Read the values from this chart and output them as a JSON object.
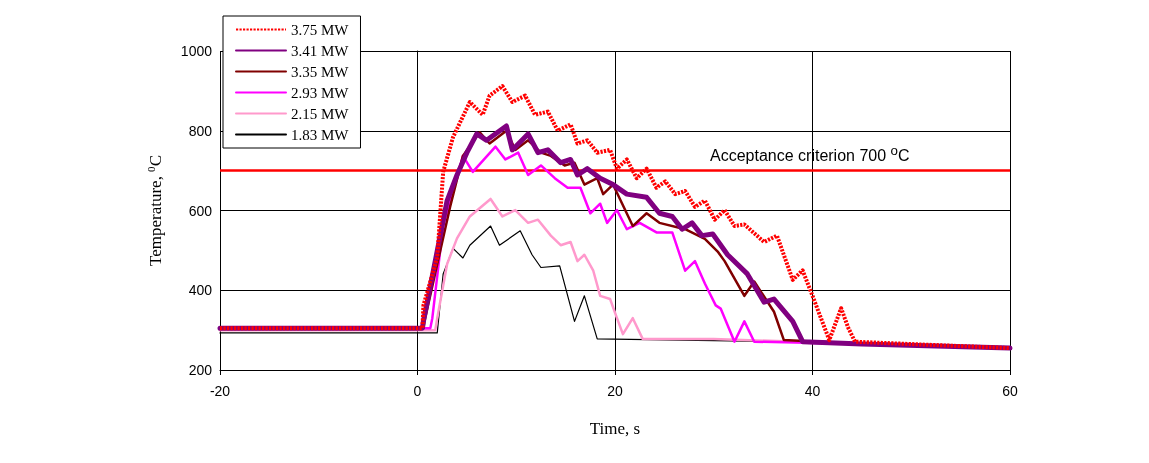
{
  "chart_data": {
    "type": "line",
    "xlabel": "Time, s",
    "ylabel": "Temperature, $^{0}$C",
    "xlim": [
      -20,
      60
    ],
    "xticks": [
      -20,
      0,
      20,
      40,
      60
    ],
    "ylim": [
      200,
      1000
    ],
    "yticks": [
      200,
      400,
      600,
      800,
      1000
    ],
    "grid": true,
    "legend": "top left",
    "marker": "none",
    "ref_lines": [
      {
        "axis": "y",
        "value": 700,
        "label": "Acceptance criterion 700 $^{o}$C",
        "color": "#ff0000"
      }
    ],
    "series": [
      {
        "name": "3.75 MW",
        "color": "#ff0000",
        "line_style": "dashed",
        "x": [
          -20,
          0.5,
          0.6,
          2.0,
          2.6,
          3.6,
          5.3,
          6.6,
          7.3,
          8.6,
          9.6,
          10.9,
          11.9,
          13.2,
          14.2,
          15.5,
          16.2,
          17.2,
          18.2,
          19.5,
          20.2,
          21.2,
          22.2,
          23.2,
          24.2,
          25.1,
          26.1,
          27.1,
          28.1,
          29.1,
          30.1,
          31.1,
          32.1,
          33.1,
          35.1,
          36.4,
          38.0,
          39.0,
          40.0,
          41.7,
          42.3,
          42.9,
          43.6,
          44.3,
          50,
          60
        ],
        "values": [
          305,
          305,
          362,
          482,
          697,
          784,
          872,
          840,
          888,
          912,
          872,
          888,
          840,
          848,
          800,
          816,
          768,
          776,
          745,
          752,
          705,
          728,
          681,
          705,
          657,
          673,
          641,
          649,
          609,
          625,
          577,
          601,
          561,
          565,
          521,
          537,
          426,
          450,
          386,
          275,
          315,
          355,
          307,
          271,
          265,
          255
        ]
      },
      {
        "name": "3.41 MW",
        "color": "#800080",
        "line_style": "solid",
        "x": [
          -20,
          0.5,
          0.6,
          3.0,
          4.0,
          5.0,
          6.0,
          7.0,
          9.0,
          9.6,
          11.2,
          12.2,
          13.2,
          14.5,
          15.5,
          16.2,
          17.2,
          18.5,
          19.8,
          21.2,
          23.2,
          24.5,
          25.8,
          26.8,
          27.8,
          28.8,
          29.9,
          31.4,
          33.4,
          35.1,
          36.1,
          38.0,
          39.0,
          45,
          60
        ],
        "values": [
          305,
          305,
          322,
          625,
          689,
          745,
          792,
          776,
          812,
          752,
          792,
          745,
          752,
          720,
          728,
          689,
          705,
          681,
          665,
          641,
          633,
          593,
          585,
          553,
          569,
          537,
          541,
          489,
          441,
          370,
          378,
          322,
          271,
          265,
          255
        ]
      },
      {
        "name": "3.35 MW",
        "color": "#800000",
        "line_style": "solid",
        "x": [
          -20,
          0.6,
          0.7,
          3.3,
          4.6,
          6.3,
          7.3,
          9.0,
          9.9,
          11.2,
          12.5,
          13.5,
          14.9,
          15.9,
          16.9,
          18.2,
          18.8,
          19.8,
          21.8,
          23.2,
          24.5,
          27.1,
          29.1,
          30.4,
          31.1,
          33.1,
          34.1,
          36.1,
          37.1,
          45,
          60
        ],
        "values": [
          305,
          305,
          322,
          609,
          737,
          796,
          768,
          800,
          752,
          776,
          745,
          737,
          713,
          720,
          665,
          681,
          641,
          665,
          561,
          593,
          569,
          553,
          529,
          497,
          473,
          386,
          422,
          346,
          275,
          265,
          255
        ]
      },
      {
        "name": "2.93 MW",
        "color": "#ff00ff",
        "line_style": "solid",
        "x": [
          -20,
          1.3,
          1.5,
          2.6,
          4.6,
          5.6,
          7.9,
          8.9,
          10.2,
          11.2,
          12.5,
          13.9,
          15.2,
          16.5,
          17.5,
          18.5,
          19.2,
          20.2,
          21.2,
          22.5,
          24.2,
          25.8,
          27.1,
          28.1,
          29.1,
          30.2,
          30.7,
          32.1,
          33.1,
          34.1,
          45,
          60
        ],
        "values": [
          305,
          305,
          330,
          563,
          737,
          697,
          760,
          728,
          745,
          689,
          713,
          681,
          657,
          657,
          593,
          617,
          569,
          601,
          553,
          569,
          545,
          545,
          449,
          473,
          417,
          362,
          354,
          271,
          322,
          271,
          265,
          255
        ]
      },
      {
        "name": "2.15 MW",
        "color": "#ff99cc",
        "line_style": "solid",
        "x": [
          -20,
          1.8,
          2.0,
          3.0,
          4.0,
          5.3,
          7.4,
          8.6,
          9.9,
          11.2,
          12.2,
          13.5,
          14.5,
          15.5,
          16.2,
          16.9,
          17.8,
          18.5,
          19.5,
          20.2,
          20.8,
          21.8,
          22.8,
          30,
          45,
          60
        ],
        "values": [
          300,
          300,
          330,
          466,
          530,
          585,
          629,
          585,
          601,
          569,
          577,
          537,
          513,
          521,
          473,
          489,
          449,
          386,
          378,
          330,
          290,
          330,
          278,
          278,
          265,
          255
        ]
      },
      {
        "name": "1.83 MW",
        "color": "#000000",
        "line_style": "solid",
        "x": [
          -20,
          2.0,
          2.6,
          3.6,
          4.6,
          5.3,
          7.4,
          8.3,
          10.4,
          11.6,
          12.5,
          14.4,
          15.9,
          16.9,
          18.2,
          40,
          60
        ],
        "values": [
          293,
          293,
          441,
          505,
          481,
          513,
          561,
          513,
          549,
          489,
          457,
          461,
          322,
          386,
          278,
          270,
          255
        ]
      }
    ]
  }
}
